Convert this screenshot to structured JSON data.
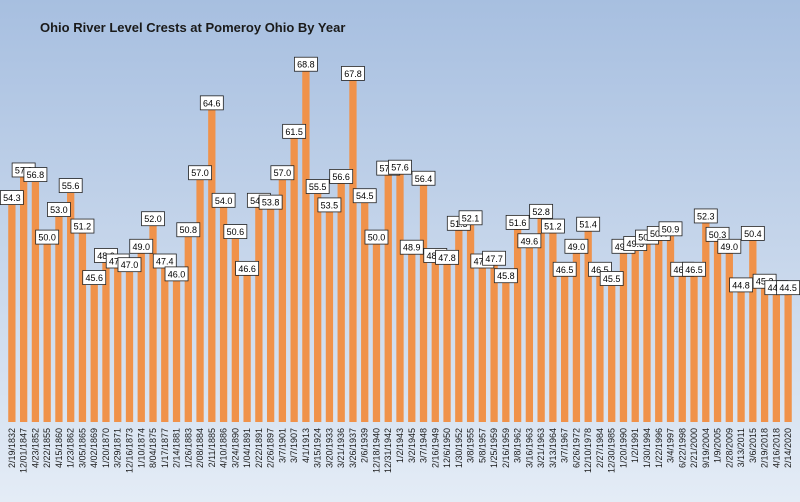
{
  "chart_data": {
    "type": "bar",
    "title": "Ohio River Level Crests at Pomeroy Ohio By Year",
    "xlabel": "",
    "ylabel": "",
    "ylim": [
      30,
      71
    ],
    "grid": false,
    "legend": "none",
    "bar_color": "#f0924a",
    "background": [
      "#a7bfe0",
      "#e4ecf6"
    ],
    "categories": [
      "2/19/1832",
      "12/01/1847",
      "4/23/1852",
      "2/22/1855",
      "4/15/1860",
      "1/23/1862",
      "3/05/1865",
      "4/02/1869",
      "1/20/1870",
      "3/29/1871",
      "12/16/1873",
      "1/10/1874",
      "8/04/1875",
      "1/17/1877",
      "2/14/1881",
      "1/26/1883",
      "2/08/1884",
      "2/11/1885",
      "4/10/1886",
      "3/24/1890",
      "1/04/1891",
      "2/22/1891",
      "2/26/1897",
      "3/7/1901",
      "3/7/1907",
      "4/1/1913",
      "3/15/1924",
      "3/20/1933",
      "3/21/1936",
      "3/26/1937",
      "2/6/1939",
      "12/18/1940",
      "12/31/1942",
      "1/2/1943",
      "3/2/1945",
      "3/7/1948",
      "2/16/1949",
      "12/6/1950",
      "1/30/1952",
      "3/8/1955",
      "5/8/1957",
      "1/25/1959",
      "2/16/1959",
      "3/8/1962",
      "3/16/1963",
      "3/21/1963",
      "3/13/1964",
      "3/7/1967",
      "6/26/1972",
      "12/10/1978",
      "2/27/1984",
      "12/30/1985",
      "1/20/1990",
      "1/2/1991",
      "1/30/1994",
      "1/22/1996",
      "3/4/1997",
      "6/22/1998",
      "2/21/2000",
      "9/19/2004",
      "1/9/2005",
      "2/28/2009",
      "3/13/2011",
      "3/6/2015",
      "2/19/2018",
      "4/16/2018",
      "2/14/2020"
    ],
    "values": [
      54.3,
      57.3,
      56.8,
      50.0,
      53.0,
      55.6,
      51.2,
      45.6,
      48.0,
      47.4,
      47.0,
      49.0,
      52.0,
      47.4,
      46.0,
      50.8,
      57.0,
      64.6,
      54.0,
      50.6,
      46.6,
      54.0,
      53.8,
      57.0,
      61.5,
      68.8,
      55.5,
      53.5,
      56.6,
      67.8,
      54.5,
      50.0,
      57.5,
      57.6,
      48.9,
      56.4,
      48.0,
      47.8,
      51.5,
      52.1,
      47.4,
      47.7,
      45.8,
      51.6,
      49.6,
      52.8,
      51.2,
      46.5,
      49.0,
      51.4,
      46.5,
      45.5,
      49.0,
      49.3,
      50.0,
      50.4,
      50.9,
      46.5,
      46.5,
      52.3,
      50.3,
      49.0,
      44.8,
      50.4,
      45.2,
      44.5,
      44.5
    ],
    "labels": [
      "54.3",
      "57.3",
      "56.8",
      "50.0",
      "53.0",
      "55.6",
      "51.2",
      "45.6",
      "48.0",
      "47.4",
      "47.0",
      "49.0",
      "52.0",
      "47.4",
      "46.0",
      "50.8",
      "57.0",
      "64.6",
      "54.0",
      "50.6",
      "46.6",
      "54.0",
      "53.8",
      "57.0",
      "61.5",
      "68.8",
      "55.5",
      "53.5",
      "56.6",
      "67.8",
      "54.5",
      "50.0",
      "57.5",
      "57.6",
      "48.9",
      "56.4",
      "48.0",
      "47.8",
      "51.5",
      "52.1",
      "47.4",
      "47.7",
      "45.8",
      "51.6",
      "49.6",
      "52.8",
      "51.2",
      "46.5",
      "49.0",
      "51.4",
      "46.5",
      "45.5",
      "49.0",
      "49.3",
      "50.0",
      "50.4",
      "50.9",
      "46.5",
      "46.5",
      "52.3",
      "50.3",
      "49.0",
      "44.8",
      "50.4",
      "45.2",
      "44.5",
      "44.5"
    ]
  }
}
